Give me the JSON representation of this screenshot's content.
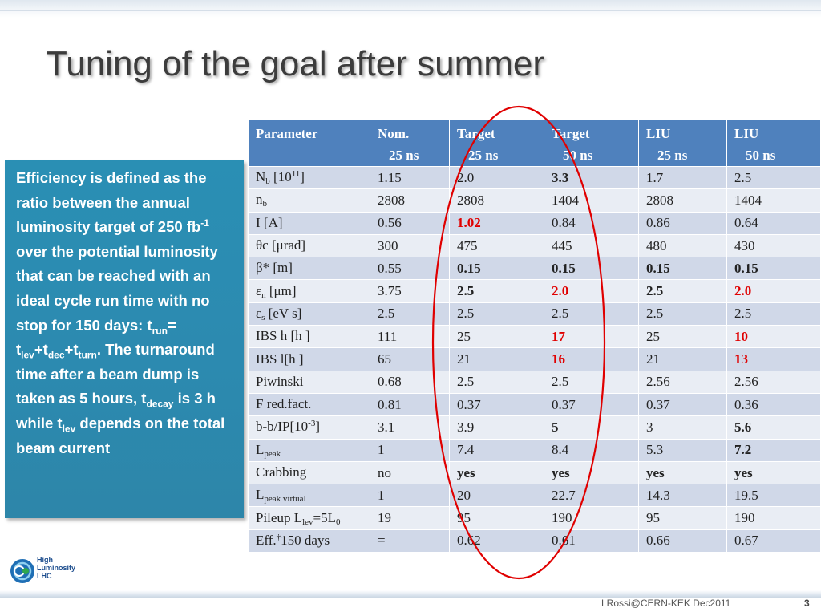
{
  "slide": {
    "title": "Tuning of the goal after summer",
    "sidebox": {
      "t1": "Efficiency is defined as the ratio between the annual luminosity target of 250 fb",
      "sup1": "-1",
      "t2": " over the potential luminosity that can be reached with an ideal cycle run time with no stop for 150 days: t",
      "sub_run": "run",
      "t3": "= t",
      "sub_lev": "lev",
      "t4": "+t",
      "sub_dec": "dec",
      "t5": "+t",
      "sub_turn": "turn",
      "t6": ". The turnaround time after a beam dump is taken as 5 hours, t",
      "sub_decay": "decay",
      "t7": " is 3 h while t",
      "sub_lev2": "lev",
      "t8": " depends on the total beam current"
    },
    "logo": {
      "line1": "High",
      "line2": "Luminosity",
      "line3": "LHC"
    },
    "footer": {
      "author": "LRossi@CERN-KEK Dec2011",
      "page": "3"
    }
  },
  "table": {
    "header": [
      [
        "Parameter",
        ""
      ],
      [
        "Nom.",
        "25 ns"
      ],
      [
        "Target",
        "25 ns"
      ],
      [
        "Target",
        "50 ns"
      ],
      [
        "LIU",
        "25 ns"
      ],
      [
        "LIU",
        "50 ns"
      ]
    ],
    "rows": [
      {
        "p": [
          "N",
          "b",
          " [10",
          "11",
          "]"
        ],
        "v": [
          "1.15",
          "2.0",
          "3.3",
          "1.7",
          "2.5"
        ],
        "s": [
          "",
          "",
          "b",
          "",
          ""
        ]
      },
      {
        "p": [
          "n",
          "b",
          "",
          "",
          ""
        ],
        "v": [
          "2808",
          "2808",
          "1404",
          "2808",
          "1404"
        ],
        "s": [
          "",
          "",
          "",
          "",
          ""
        ]
      },
      {
        "p": [
          "I [A]",
          "",
          "",
          "",
          ""
        ],
        "v": [
          "0.56",
          "1.02",
          "0.84",
          "0.86",
          "0.64"
        ],
        "s": [
          "",
          "r",
          "",
          "",
          ""
        ]
      },
      {
        "p": [
          "θc [μrad]",
          "",
          "",
          "",
          ""
        ],
        "v": [
          "300",
          "475",
          "445",
          "480",
          "430"
        ],
        "s": [
          "",
          "",
          "",
          "",
          ""
        ]
      },
      {
        "p": [
          "β* [m]",
          "",
          "",
          "",
          ""
        ],
        "v": [
          "0.55",
          "0.15",
          "0.15",
          "0.15",
          "0.15"
        ],
        "s": [
          "",
          "b",
          "b",
          "b",
          "b"
        ]
      },
      {
        "p": [
          "ε",
          "n",
          " [μm]",
          "",
          ""
        ],
        "v": [
          "3.75",
          "2.5",
          "2.0",
          "2.5",
          "2.0"
        ],
        "s": [
          "",
          "b",
          "r",
          "b",
          "r"
        ]
      },
      {
        "p": [
          "ε",
          "s",
          " [eV s]",
          "",
          ""
        ],
        "v": [
          "2.5",
          "2.5",
          "2.5",
          "2.5",
          "2.5"
        ],
        "s": [
          "",
          "",
          "",
          "",
          ""
        ]
      },
      {
        "p": [
          "IBS h [h ]",
          "",
          "",
          "",
          ""
        ],
        "v": [
          "111",
          "25",
          "17",
          "25",
          "10"
        ],
        "s": [
          "",
          "",
          "r",
          "",
          "r"
        ]
      },
      {
        "p": [
          "IBS l[h ]",
          "",
          "",
          "",
          ""
        ],
        "v": [
          "65",
          "21",
          "16",
          "21",
          "13"
        ],
        "s": [
          "",
          "",
          "r",
          "",
          "r"
        ]
      },
      {
        "p": [
          "Piwinski",
          "",
          "",
          "",
          ""
        ],
        "v": [
          "0.68",
          "2.5",
          "2.5",
          "2.56",
          "2.56"
        ],
        "s": [
          "",
          "",
          "",
          "",
          ""
        ]
      },
      {
        "p": [
          "F red.fact.",
          "",
          "",
          "",
          ""
        ],
        "v": [
          "0.81",
          "0.37",
          "0.37",
          "0.37",
          "0.36"
        ],
        "s": [
          "",
          "",
          "",
          "",
          ""
        ]
      },
      {
        "p": [
          "b-b/IP[10",
          "",
          "",
          "-3",
          "]"
        ],
        "v": [
          "3.1",
          "3.9",
          "5",
          "3",
          "5.6"
        ],
        "s": [
          "",
          "",
          "b",
          "",
          "b"
        ]
      },
      {
        "p": [
          "L",
          "peak",
          "",
          "",
          ""
        ],
        "v": [
          "1",
          "7.4",
          "8.4",
          "5.3",
          "7.2"
        ],
        "s": [
          "",
          "",
          "",
          "",
          "b"
        ]
      },
      {
        "p": [
          "Crabbing",
          "",
          "",
          "",
          ""
        ],
        "v": [
          "no",
          "yes",
          "yes",
          "yes",
          "yes"
        ],
        "s": [
          "",
          "b",
          "b",
          "b",
          "b"
        ]
      },
      {
        "p": [
          "L",
          "peak virtual",
          "",
          "",
          ""
        ],
        "v": [
          "1",
          "20",
          "22.7",
          "14.3",
          "19.5"
        ],
        "s": [
          "",
          "",
          "",
          "",
          ""
        ]
      },
      {
        "p": [
          "Pileup L",
          "lev",
          "=5L",
          "",
          "",
          "0"
        ],
        "v": [
          "19",
          "95",
          "190",
          "95",
          "190"
        ],
        "s": [
          "",
          "",
          "",
          "",
          ""
        ]
      },
      {
        "p": [
          "Eff.",
          "",
          "",
          "†",
          "150  days"
        ],
        "v": [
          "=",
          "0.62",
          "0.61",
          "0.66",
          "0.67"
        ],
        "s": [
          "",
          "",
          "",
          "",
          ""
        ]
      }
    ]
  },
  "colors": {
    "header_bg": "#4f81bd",
    "row_odd": "#d0d8e8",
    "row_even": "#e9edf4",
    "sidebox_bg": "#2a8fb4",
    "highlight_red": "#e00000",
    "ellipse": "#e00000"
  }
}
